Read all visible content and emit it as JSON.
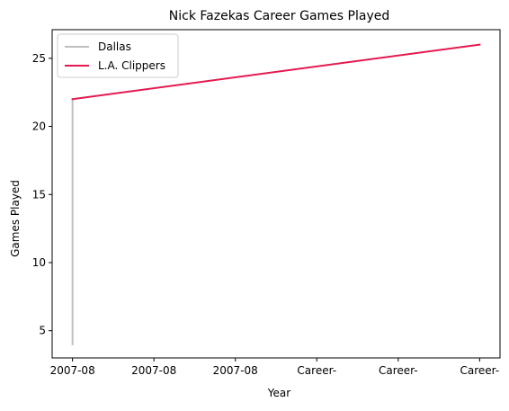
{
  "chart_data": {
    "type": "line",
    "title": "Nick Fazekas Career Games Played",
    "xlabel": "Year",
    "ylabel": "Games Played",
    "x_tick_labels": [
      "2007-08",
      "2007-08",
      "2007-08",
      "Career-",
      "Career-",
      "Career-"
    ],
    "yticks": [
      5,
      10,
      15,
      20,
      25
    ],
    "xlim": [
      -0.25,
      5.25
    ],
    "ylim": [
      3,
      27.1
    ],
    "grid": false,
    "legend_position": "top-left",
    "series": [
      {
        "name": "Dallas",
        "color": "#bfbfbf",
        "points": [
          {
            "x": 0,
            "y": 4
          },
          {
            "x": 0,
            "y": 22
          }
        ]
      },
      {
        "name": "L.A. Clippers",
        "color": "#e31a4f",
        "points": [
          {
            "x": 0,
            "y": 22
          },
          {
            "x": 5,
            "y": 26
          }
        ]
      }
    ]
  }
}
